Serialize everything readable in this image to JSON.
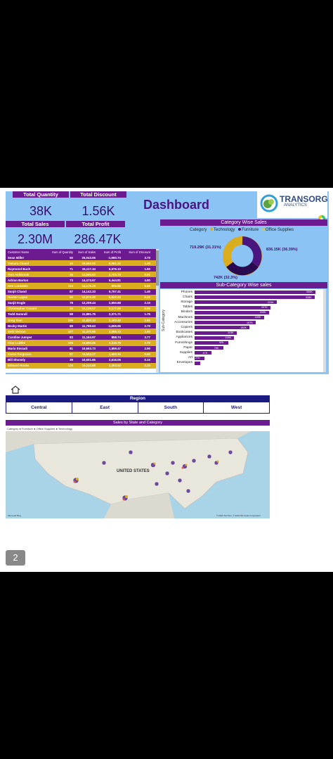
{
  "kpi": {
    "total_quantity_label": "Total Quantity",
    "total_quantity": "38K",
    "total_discount_label": "Total Discount",
    "total_discount": "1.56K",
    "total_sales_label": "Total Sales",
    "total_sales": "2.30M",
    "total_profit_label": "Total Profit",
    "total_profit": "286.47K"
  },
  "dashboard_title": "Dashboard",
  "logo": {
    "name": "TRANSORG",
    "sub": "ANALYTICS"
  },
  "table": {
    "headers": [
      "Customer Name",
      "Sum of Quantity",
      "Sum of Sales",
      "Sum of Profit",
      "Sum of Discount"
    ],
    "rows": [
      [
        "Sean Miller",
        "50",
        "25,043.05",
        "-1,980.74",
        "3.70"
      ],
      [
        "Tamara Chand",
        "42",
        "19,052.22",
        "8,981.32",
        "1.40"
      ],
      [
        "Raymond Buch",
        "71",
        "15,117.34",
        "6,976.10",
        "1.90"
      ],
      [
        "Tom Ashbrook",
        "36",
        "14,595.62",
        "4,703.79",
        "0.50"
      ],
      [
        "Adrian Barton",
        "73",
        "14,473.57",
        "5,444.81",
        "4.80"
      ],
      [
        "Ken Lonsdale",
        "113",
        "14,175.23",
        "806.85",
        "5.60"
      ],
      [
        "Sanjit Chand",
        "87",
        "14,142.33",
        "5,757.41",
        "1.40"
      ],
      [
        "Hunter Lopez",
        "50",
        "12,873.30",
        "5,622.43",
        "0.20"
      ],
      [
        "Sanjit Engle",
        "78",
        "12,209.44",
        "2,650.68",
        "2.10"
      ],
      [
        "Christopher Conant",
        "34",
        "12,129.07",
        "2,177.05",
        "0.90"
      ],
      [
        "Todd Sumrall",
        "59",
        "11,891.75",
        "2,371.71",
        "1.75"
      ],
      [
        "Greg Tran",
        "106",
        "11,820.12",
        "2,163.42",
        "2.80"
      ],
      [
        "Becky Martin",
        "69",
        "11,789.63",
        "-1,659.96",
        "2.70"
      ],
      [
        "Seth Vernon",
        "107",
        "11,470.95",
        "3,095.72",
        "2.60"
      ],
      [
        "Caroline Jumper",
        "83",
        "11,164.97",
        "858.74",
        "3.77"
      ],
      [
        "Clay Ludtke",
        "106",
        "10,880.55",
        "2,316.78",
        "2.70"
      ],
      [
        "Maria Etezadi",
        "81",
        "10,663.73",
        "1,859.47",
        "2.90"
      ],
      [
        "Karen Ferguson",
        "87",
        "10,604.27",
        "1,660.34",
        "0.60"
      ],
      [
        "Bill Shonely",
        "39",
        "10,501.65",
        "2,616.06",
        "0.10"
      ],
      [
        "Edward Hooks",
        "126",
        "10,310.88",
        "1,393.52",
        "2.20"
      ]
    ]
  },
  "category_chart": {
    "title": "Category Wise Sales",
    "legend_label": "Category",
    "legend": [
      "Technology",
      "Furniture",
      "Office Supplies"
    ],
    "colors": {
      "Technology": "#d9ad1e",
      "Furniture": "#4a1580",
      "Office Supplies": "#c9c95a"
    },
    "labels": {
      "left": "719.29K (31.31%)",
      "right": "836.15K (36.39%)",
      "bottom": "742K (32.3%)"
    }
  },
  "subcat_chart": {
    "title": "Sub-Category Wise sales",
    "ylabel": "Sub-Category"
  },
  "chart_data": {
    "type": "bar",
    "title": "Sub-Category Wise sales",
    "ylabel": "Sub-Category",
    "categories": [
      "Phones",
      "Chairs",
      "Storage",
      "Tables",
      "Binders",
      "Machines",
      "Accessories",
      "Copiers",
      "Bookcases",
      "Appliances",
      "Furnishings",
      "Paper",
      "Supplies",
      "Art",
      "Envelopes"
    ],
    "values": [
      330,
      328,
      224,
      207,
      203,
      189,
      167,
      150,
      115,
      108,
      92,
      78,
      47,
      27,
      16
    ],
    "value_labels": [
      "330K",
      "328K",
      "224K",
      "207K",
      "203K",
      "189K",
      "167K",
      "150K",
      "115K",
      "108K",
      "92K",
      "78K",
      "47K",
      "27K",
      ""
    ]
  },
  "slide2": {
    "region_label": "Region",
    "regions": [
      "Central",
      "East",
      "South",
      "West"
    ],
    "map_title": "Sales by State and Category",
    "map_legend": "Category ● Furniture ● Office Supplies ● Technology",
    "country_label": "UNITED STATES",
    "map_brand": "Microsoft Bing",
    "map_credit": "© 2023 TomTom, © 2023 Microsoft Corporation"
  },
  "page_number": "2"
}
